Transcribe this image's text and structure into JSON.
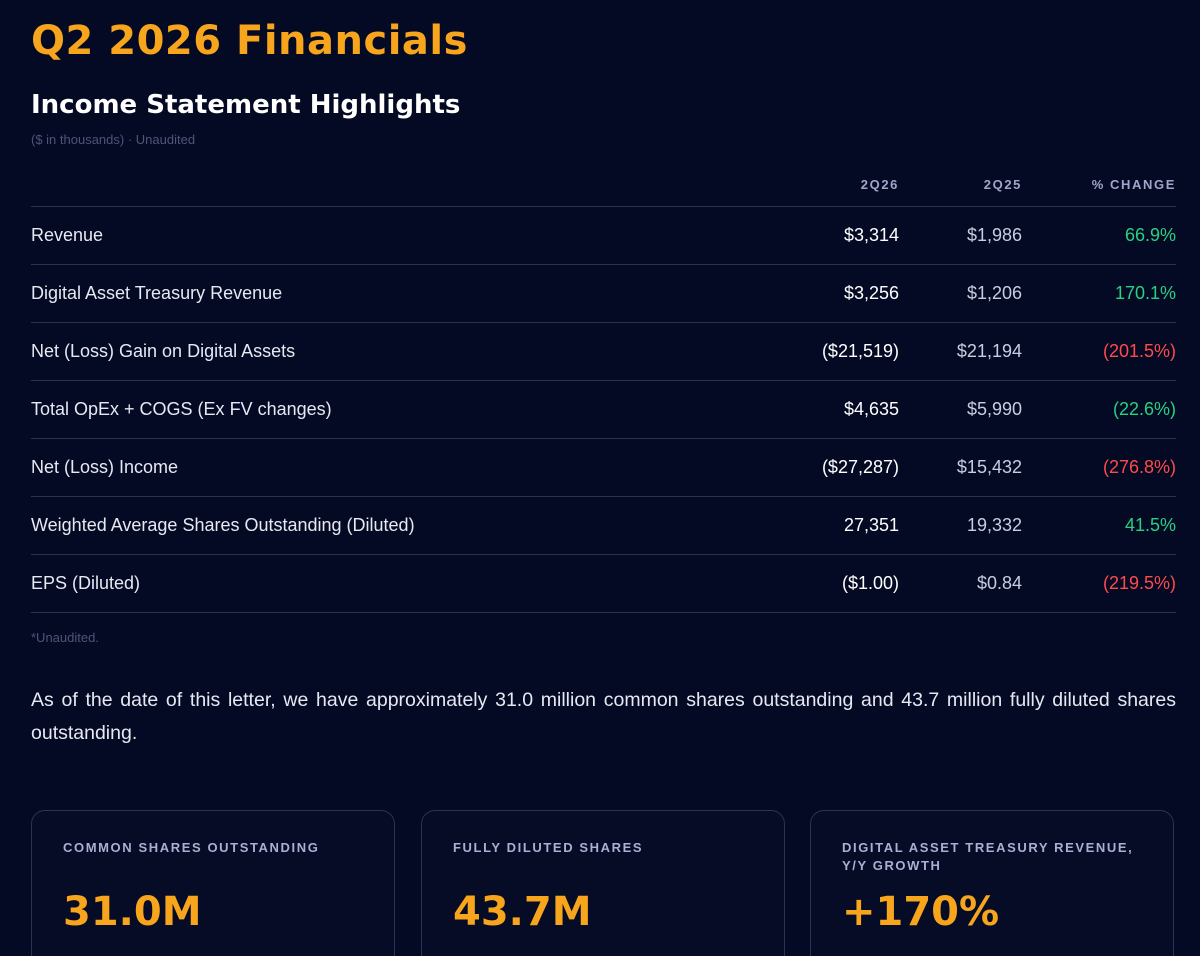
{
  "title": "Q2 2026 Financials",
  "section": {
    "title": "Income Statement Highlights",
    "subtitle": "($ in thousands) · Unaudited"
  },
  "table": {
    "headers": [
      "",
      "2Q26",
      "2Q25",
      "% CHANGE"
    ],
    "rows": [
      {
        "label": "Revenue",
        "current": "$3,314",
        "prior": "$1,986",
        "change": "66.9%",
        "change_sign": "positive"
      },
      {
        "label": "Digital Asset Treasury Revenue",
        "current": "$3,256",
        "prior": "$1,206",
        "change": "170.1%",
        "change_sign": "positive"
      },
      {
        "label": "Net (Loss) Gain on Digital Assets",
        "current": "($21,519)",
        "prior": "$21,194",
        "change": "(201.5%)",
        "change_sign": "negative"
      },
      {
        "label": "Total OpEx + COGS (Ex FV changes)",
        "current": "$4,635",
        "prior": "$5,990",
        "change": "(22.6%)",
        "change_sign": "positive"
      },
      {
        "label": "Net (Loss) Income",
        "current": "($27,287)",
        "prior": "$15,432",
        "change": "(276.8%)",
        "change_sign": "negative"
      },
      {
        "label": "Weighted Average Shares Outstanding (Diluted)",
        "current": "27,351",
        "prior": "19,332",
        "change": "41.5%",
        "change_sign": "positive"
      },
      {
        "label": "EPS (Diluted)",
        "current": "($1.00)",
        "prior": "$0.84",
        "change": "(219.5%)",
        "change_sign": "negative"
      }
    ]
  },
  "footnote": "*Unaudited.",
  "paragraph": "As of the date of this letter, we have approximately 31.0 million common shares outstanding and 43.7 million fully diluted shares outstanding.",
  "cards": [
    {
      "label": "Common Shares Outstanding",
      "value": "31.0M"
    },
    {
      "label": "Fully Diluted Shares",
      "value": "43.7M"
    },
    {
      "label": "Digital Asset Treasury Revenue, Y/Y Growth",
      "value": "+170%"
    }
  ],
  "colors": {
    "background": "#050a24",
    "accent": "#f6a51c",
    "positive": "#27d17f",
    "negative": "#ff4a4a"
  }
}
